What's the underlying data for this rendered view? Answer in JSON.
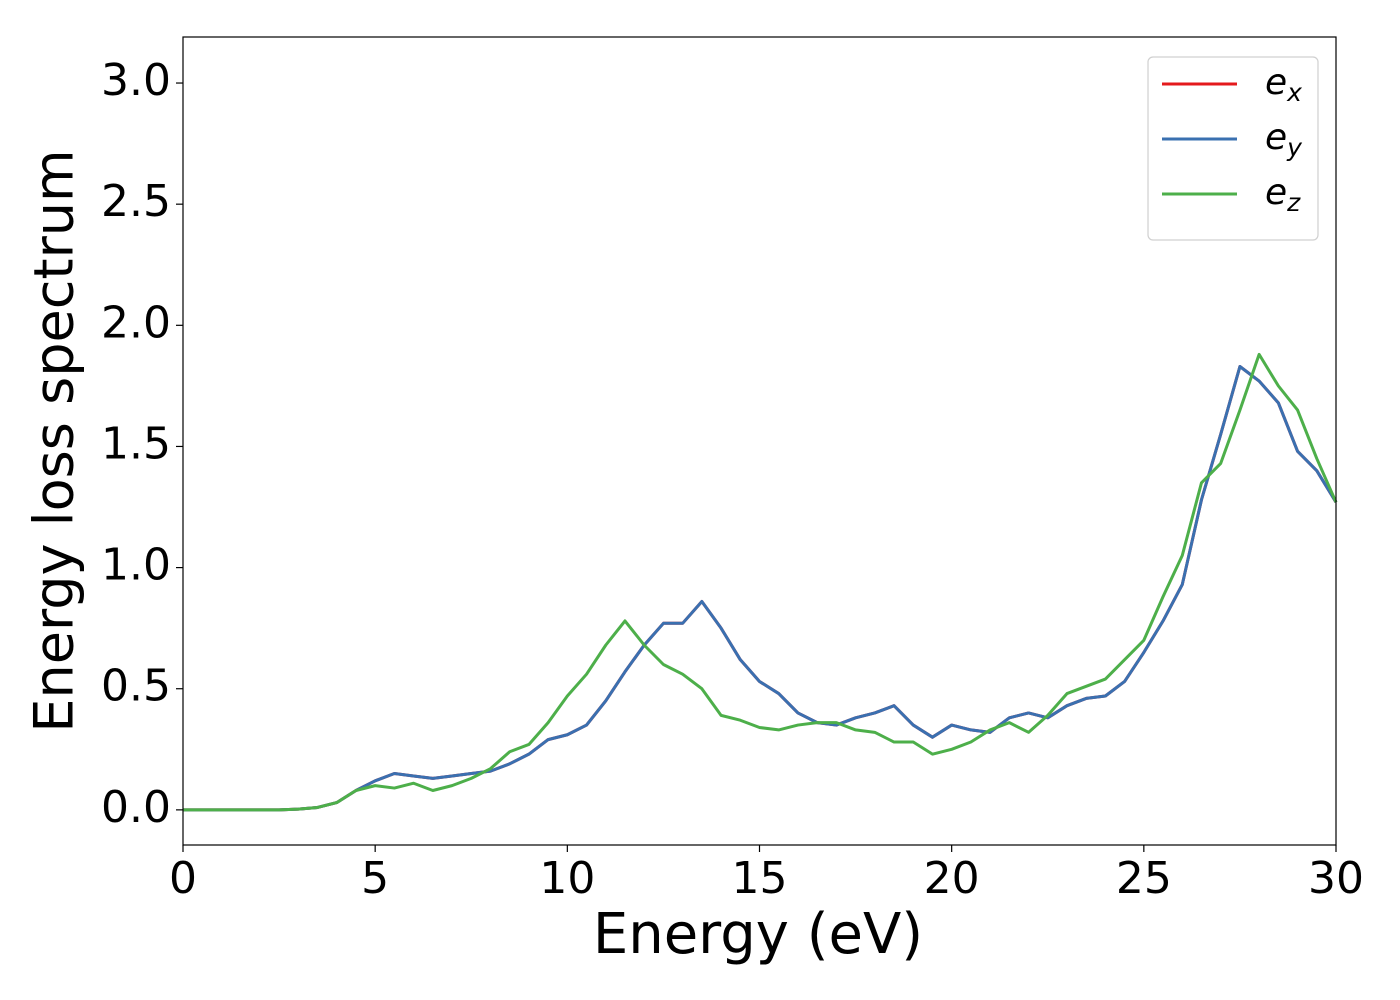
{
  "chart_data": {
    "type": "line",
    "xlabel": "Energy (eV)",
    "ylabel": "Energy loss spectrum",
    "x": [
      0,
      0.5,
      1,
      1.5,
      2,
      2.5,
      3,
      3.5,
      4,
      4.5,
      5,
      5.5,
      6,
      6.5,
      7,
      7.5,
      8,
      8.5,
      9,
      9.5,
      10,
      10.5,
      11,
      11.5,
      12,
      12.5,
      13,
      13.5,
      14,
      14.5,
      15,
      15.5,
      16,
      16.5,
      17,
      17.5,
      18,
      18.5,
      19,
      19.5,
      20,
      20.5,
      21,
      21.5,
      22,
      22.5,
      23,
      23.5,
      24,
      24.5,
      25,
      25.5,
      26,
      26.5,
      27,
      27.5,
      28,
      28.5,
      29,
      29.5,
      30
    ],
    "series": [
      {
        "name": "ex",
        "color": "#e41a1c",
        "values": [
          0,
          0,
          0,
          0,
          0,
          0,
          0.003,
          0.01,
          0.03,
          0.08,
          0.12,
          0.15,
          0.14,
          0.13,
          0.14,
          0.15,
          0.16,
          0.19,
          0.23,
          0.29,
          0.31,
          0.35,
          0.45,
          0.57,
          0.68,
          0.77,
          0.77,
          0.86,
          0.75,
          0.62,
          0.53,
          0.48,
          0.4,
          0.36,
          0.35,
          0.38,
          0.4,
          0.43,
          0.35,
          0.3,
          0.35,
          0.33,
          0.32,
          0.38,
          0.4,
          0.38,
          0.43,
          0.46,
          0.47,
          0.53,
          0.65,
          0.78,
          0.93,
          1.28,
          1.55,
          1.83,
          1.77,
          1.68,
          1.48,
          1.4,
          1.27
        ]
      },
      {
        "name": "ey",
        "color": "#3a70b0",
        "values": [
          0,
          0,
          0,
          0,
          0,
          0,
          0.003,
          0.01,
          0.03,
          0.08,
          0.12,
          0.15,
          0.14,
          0.13,
          0.14,
          0.15,
          0.16,
          0.19,
          0.23,
          0.29,
          0.31,
          0.35,
          0.45,
          0.57,
          0.68,
          0.77,
          0.77,
          0.86,
          0.75,
          0.62,
          0.53,
          0.48,
          0.4,
          0.36,
          0.35,
          0.38,
          0.4,
          0.43,
          0.35,
          0.3,
          0.35,
          0.33,
          0.32,
          0.38,
          0.4,
          0.38,
          0.43,
          0.46,
          0.47,
          0.53,
          0.65,
          0.78,
          0.93,
          1.28,
          1.55,
          1.83,
          1.77,
          1.68,
          1.48,
          1.4,
          1.27
        ]
      },
      {
        "name": "ez",
        "color": "#4daf4a",
        "values": [
          0,
          0,
          0,
          0,
          0,
          0,
          0.003,
          0.01,
          0.03,
          0.08,
          0.1,
          0.09,
          0.11,
          0.08,
          0.1,
          0.13,
          0.17,
          0.24,
          0.27,
          0.36,
          0.47,
          0.56,
          0.68,
          0.78,
          0.68,
          0.6,
          0.56,
          0.5,
          0.39,
          0.37,
          0.34,
          0.33,
          0.35,
          0.36,
          0.36,
          0.33,
          0.32,
          0.28,
          0.28,
          0.23,
          0.25,
          0.28,
          0.33,
          0.36,
          0.32,
          0.39,
          0.48,
          0.51,
          0.54,
          0.62,
          0.7,
          0.88,
          1.05,
          1.35,
          1.43,
          1.65,
          1.88,
          1.75,
          1.65,
          1.45,
          1.27
        ]
      }
    ],
    "xlim": [
      0,
      30
    ],
    "xticks": [
      0,
      5,
      10,
      15,
      20,
      25,
      30
    ],
    "ylim": [
      -0.145,
      3.19
    ],
    "yticks": [
      {
        "value": 0,
        "label": "0.0"
      },
      {
        "value": 0.5,
        "label": "0.5"
      },
      {
        "value": 1,
        "label": "1.0"
      },
      {
        "value": 1.5,
        "label": "1.5"
      },
      {
        "value": 2,
        "label": "2.0"
      },
      {
        "value": 2.5,
        "label": "2.5"
      },
      {
        "value": 3,
        "label": "3.0"
      }
    ],
    "legend": "upper right",
    "grid": false
  }
}
